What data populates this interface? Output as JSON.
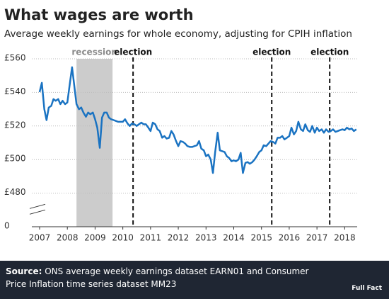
{
  "chart_data": {
    "type": "line",
    "title": "What wages are worth",
    "subtitle": "Average weekly earnings for whole economy, adjusting for CPIH inflation",
    "x": [
      2007,
      2007.08,
      2007.17,
      2007.25,
      2007.33,
      2007.42,
      2007.5,
      2007.58,
      2007.67,
      2007.75,
      2007.83,
      2007.92,
      2008,
      2008.08,
      2008.17,
      2008.25,
      2008.33,
      2008.42,
      2008.5,
      2008.58,
      2008.67,
      2008.75,
      2008.83,
      2008.92,
      2009,
      2009.08,
      2009.17,
      2009.25,
      2009.33,
      2009.42,
      2009.5,
      2009.58,
      2009.67,
      2009.75,
      2009.83,
      2009.92,
      2010,
      2010.08,
      2010.17,
      2010.25,
      2010.33,
      2010.42,
      2010.5,
      2010.58,
      2010.67,
      2010.75,
      2010.83,
      2010.92,
      2011,
      2011.08,
      2011.17,
      2011.25,
      2011.33,
      2011.42,
      2011.5,
      2011.58,
      2011.67,
      2011.75,
      2011.83,
      2011.92,
      2012,
      2012.08,
      2012.17,
      2012.25,
      2012.33,
      2012.42,
      2012.5,
      2012.58,
      2012.67,
      2012.75,
      2012.83,
      2012.92,
      2013,
      2013.08,
      2013.17,
      2013.25,
      2013.33,
      2013.42,
      2013.5,
      2013.58,
      2013.67,
      2013.75,
      2013.83,
      2013.92,
      2014,
      2014.08,
      2014.17,
      2014.25,
      2014.33,
      2014.42,
      2014.5,
      2014.58,
      2014.67,
      2014.75,
      2014.83,
      2014.92,
      2015,
      2015.08,
      2015.17,
      2015.25,
      2015.33,
      2015.42,
      2015.5,
      2015.58,
      2015.67,
      2015.75,
      2015.83,
      2015.92,
      2016,
      2016.08,
      2016.17,
      2016.25,
      2016.33,
      2016.42,
      2016.5,
      2016.58,
      2016.67,
      2016.75,
      2016.83,
      2016.92,
      2017,
      2017.08,
      2017.17,
      2017.25,
      2017.33,
      2017.42,
      2017.5,
      2017.58,
      2017.67,
      2017.75,
      2017.83,
      2017.92,
      2018,
      2018.08,
      2018.17,
      2018.25,
      2018.33,
      2018.42
    ],
    "values": [
      540.2,
      545.7,
      530,
      523.5,
      531,
      532,
      536,
      535,
      536,
      533,
      535,
      533,
      534,
      544,
      555,
      544,
      533,
      530,
      531,
      528,
      525.5,
      528,
      527,
      528,
      524,
      519,
      507,
      525,
      528,
      528,
      525,
      524,
      523.5,
      523,
      522.5,
      522.5,
      522.5,
      524,
      521.5,
      520,
      521.5,
      521,
      520,
      521,
      522,
      521,
      521,
      519,
      517,
      522,
      521,
      518,
      517,
      513,
      514,
      512.5,
      513,
      517,
      515,
      511,
      508,
      511,
      510.5,
      509.5,
      508,
      507.5,
      507.5,
      508,
      508.5,
      511,
      506.5,
      505.5,
      502,
      503,
      500,
      492,
      504.5,
      516,
      505.5,
      505,
      504.5,
      502,
      501,
      499,
      499.5,
      499,
      500,
      504,
      492,
      498,
      498.5,
      497.5,
      498.5,
      500,
      502,
      504.5,
      505.5,
      508.5,
      508,
      509.5,
      511,
      510.5,
      509.5,
      513,
      513,
      514,
      512,
      513,
      514,
      519,
      515,
      517,
      522.5,
      518,
      517,
      521,
      517.5,
      516.5,
      520,
      516,
      519,
      517,
      518,
      516,
      518,
      516.5,
      517,
      518,
      516.5,
      517,
      517.5,
      518,
      517.5,
      519,
      518,
      518.5,
      517,
      518
    ],
    "color": "#1a73c2",
    "xlim": [
      2007,
      2018.45
    ],
    "xticks": [
      2007,
      2008,
      2009,
      2010,
      2011,
      2012,
      2013,
      2014,
      2015,
      2016,
      2017,
      2018
    ],
    "ylim": [
      0,
      560
    ],
    "y_break": [
      0,
      460
    ],
    "yticks": [
      0,
      {
        "value": 480,
        "label": "£480"
      },
      {
        "value": 500,
        "label": "£500"
      },
      {
        "value": 520,
        "label": "£520"
      },
      {
        "value": 540,
        "label": "£540"
      },
      {
        "value": 560,
        "label": "£560"
      }
    ],
    "grid": true,
    "shaded_regions": [
      {
        "label": "recession",
        "x": [
          2008.33,
          2009.63
        ]
      }
    ],
    "vlines": [
      {
        "x": 2010.37,
        "label": "election"
      },
      {
        "x": 2015.37,
        "label": "election"
      },
      {
        "x": 2017.46,
        "label": "election"
      }
    ]
  },
  "footer": {
    "source_label": "Source:",
    "source_text": "ONS average weekly earnings dataset EARN01 and Consumer Price Inflation time series dataset MM23",
    "logo": "Full Fact"
  }
}
